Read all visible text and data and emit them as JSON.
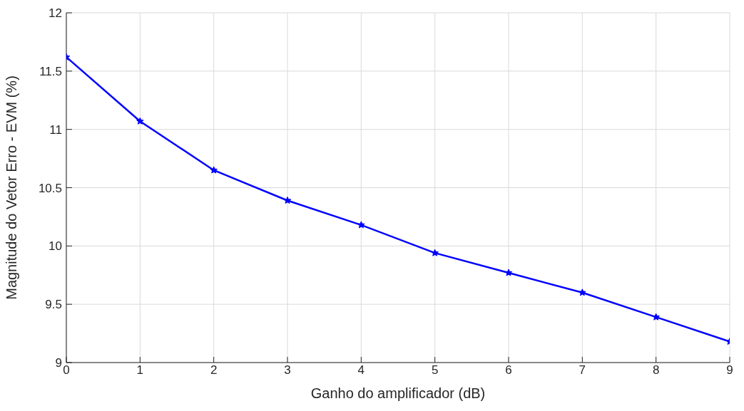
{
  "chart_data": {
    "type": "line",
    "xlabel": "Ganho do amplificador (dB)",
    "ylabel": "Magnitude do Vetor Erro - EVM (%)",
    "x": [
      0,
      1,
      2,
      3,
      4,
      5,
      6,
      7,
      8,
      9
    ],
    "series": [
      {
        "color": "#0000ff",
        "values": [
          11.62,
          11.07,
          10.65,
          10.39,
          10.18,
          9.94,
          9.77,
          9.6,
          9.39,
          9.18
        ]
      }
    ],
    "xlim": [
      0,
      9
    ],
    "xticks": [
      0,
      1,
      2,
      3,
      4,
      5,
      6,
      7,
      8,
      9
    ],
    "ylim": [
      9,
      12
    ],
    "yticks": [
      9,
      9.5,
      10,
      10.5,
      11,
      11.5,
      12
    ],
    "grid": true,
    "marker": "star",
    "line_style": "solid"
  }
}
